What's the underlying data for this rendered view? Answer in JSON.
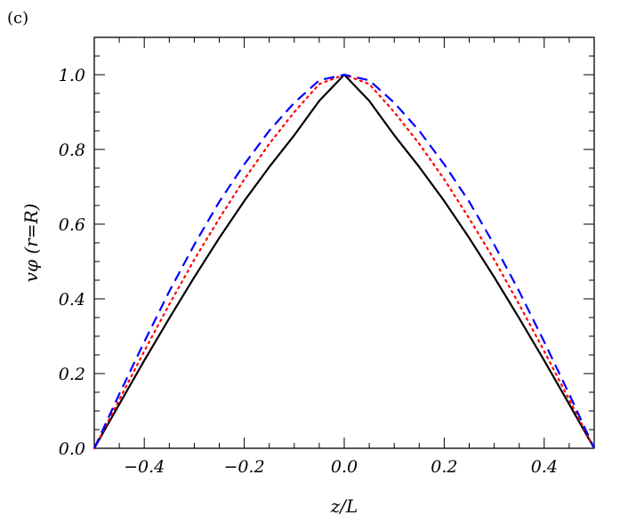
{
  "panel_label": "(c)",
  "chart_data": {
    "type": "line",
    "xlabel": "z/L",
    "ylabel": "vφ (r=R)",
    "xlim": [
      -0.5,
      0.5
    ],
    "ylim": [
      0.0,
      1.1
    ],
    "xticks": [
      -0.4,
      -0.2,
      0.0,
      0.2,
      0.4
    ],
    "xtick_labels": [
      "−0.4",
      "−0.2",
      "0.0",
      "0.2",
      "0.4"
    ],
    "yticks": [
      0.0,
      0.2,
      0.4,
      0.6,
      0.8,
      1.0
    ],
    "ytick_labels": [
      "0.0",
      "0.2",
      "0.4",
      "0.6",
      "0.8",
      "1.0"
    ],
    "grid": false,
    "series": [
      {
        "color": "#000000",
        "style": "solid",
        "x": [
          -0.5,
          -0.45,
          -0.4,
          -0.35,
          -0.3,
          -0.25,
          -0.2,
          -0.15,
          -0.1,
          -0.05,
          0.0,
          0.05,
          0.1,
          0.15,
          0.2,
          0.25,
          0.3,
          0.35,
          0.4,
          0.45,
          0.5
        ],
        "y": [
          0.0,
          0.118,
          0.235,
          0.348,
          0.458,
          0.563,
          0.662,
          0.753,
          0.838,
          0.93,
          1.0,
          0.93,
          0.838,
          0.753,
          0.662,
          0.563,
          0.458,
          0.348,
          0.235,
          0.118,
          0.0
        ]
      },
      {
        "color": "#ff0000",
        "style": "dotted",
        "x": [
          -0.5,
          -0.45,
          -0.4,
          -0.35,
          -0.3,
          -0.25,
          -0.2,
          -0.15,
          -0.1,
          -0.05,
          0.0,
          0.05,
          0.1,
          0.15,
          0.2,
          0.25,
          0.3,
          0.35,
          0.4,
          0.45,
          0.5
        ],
        "y": [
          0.0,
          0.13,
          0.26,
          0.385,
          0.505,
          0.615,
          0.72,
          0.815,
          0.9,
          0.975,
          1.0,
          0.975,
          0.9,
          0.815,
          0.72,
          0.615,
          0.505,
          0.385,
          0.26,
          0.13,
          0.0
        ]
      },
      {
        "color": "#0000ff",
        "style": "dashed",
        "x": [
          -0.5,
          -0.45,
          -0.4,
          -0.35,
          -0.3,
          -0.25,
          -0.2,
          -0.15,
          -0.1,
          -0.05,
          0.0,
          0.05,
          0.1,
          0.15,
          0.2,
          0.25,
          0.3,
          0.35,
          0.4,
          0.45,
          0.5
        ],
        "y": [
          0.0,
          0.145,
          0.285,
          0.42,
          0.545,
          0.66,
          0.76,
          0.85,
          0.925,
          0.985,
          1.0,
          0.985,
          0.925,
          0.85,
          0.76,
          0.66,
          0.545,
          0.42,
          0.285,
          0.145,
          0.0
        ]
      }
    ]
  }
}
